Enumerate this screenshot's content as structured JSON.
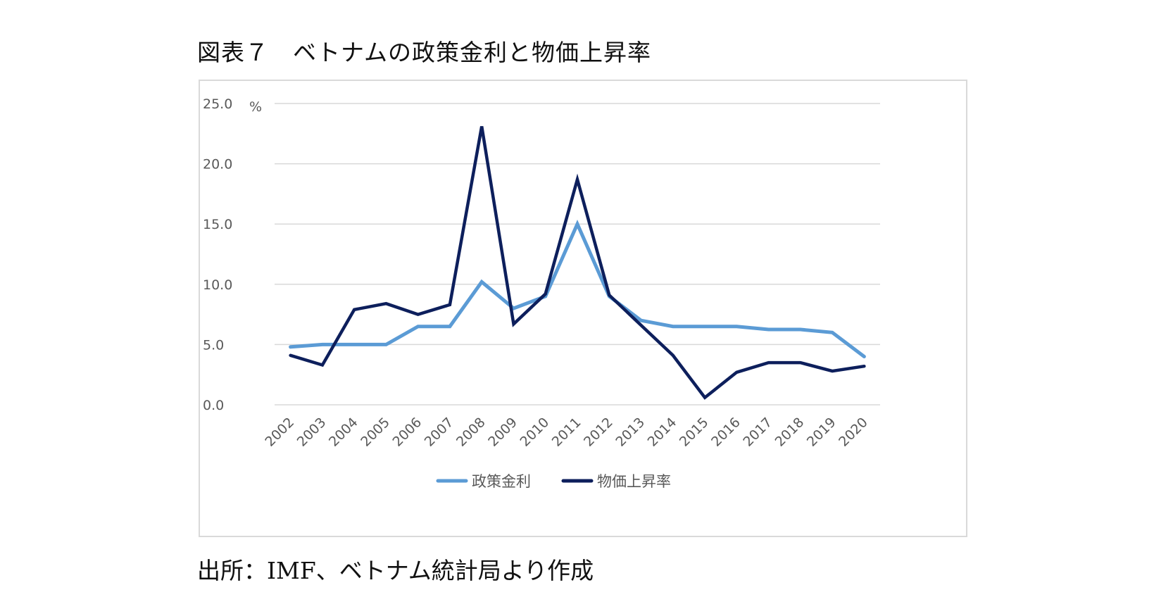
{
  "title": "図表７　ベトナムの政策金利と物価上昇率",
  "source": "出所：IMF、ベトナム統計局より作成",
  "chart_data": {
    "type": "line",
    "unit": "%",
    "categories": [
      "2002",
      "2003",
      "2004",
      "2005",
      "2006",
      "2007",
      "2008",
      "2009",
      "2010",
      "2011",
      "2012",
      "2013",
      "2014",
      "2015",
      "2016",
      "2017",
      "2018",
      "2019",
      "2020"
    ],
    "ylim": [
      0,
      25
    ],
    "yticks": [
      "0.0",
      "5.0",
      "10.0",
      "15.0",
      "20.0",
      "25.0"
    ],
    "grid": true,
    "legend_position": "bottom",
    "series": [
      {
        "name": "政策金利",
        "color": "#5b9bd5",
        "values": [
          4.8,
          5.0,
          5.0,
          5.0,
          6.5,
          6.5,
          10.2,
          8.0,
          9.0,
          15.0,
          9.0,
          7.0,
          6.5,
          6.5,
          6.5,
          6.25,
          6.25,
          6.0,
          4.0
        ]
      },
      {
        "name": "物価上昇率",
        "color": "#0d1f5c",
        "values": [
          4.1,
          3.3,
          7.9,
          8.4,
          7.5,
          8.3,
          23.1,
          6.7,
          9.2,
          18.7,
          9.1,
          6.6,
          4.1,
          0.6,
          2.7,
          3.5,
          3.5,
          2.8,
          3.2
        ]
      }
    ]
  }
}
